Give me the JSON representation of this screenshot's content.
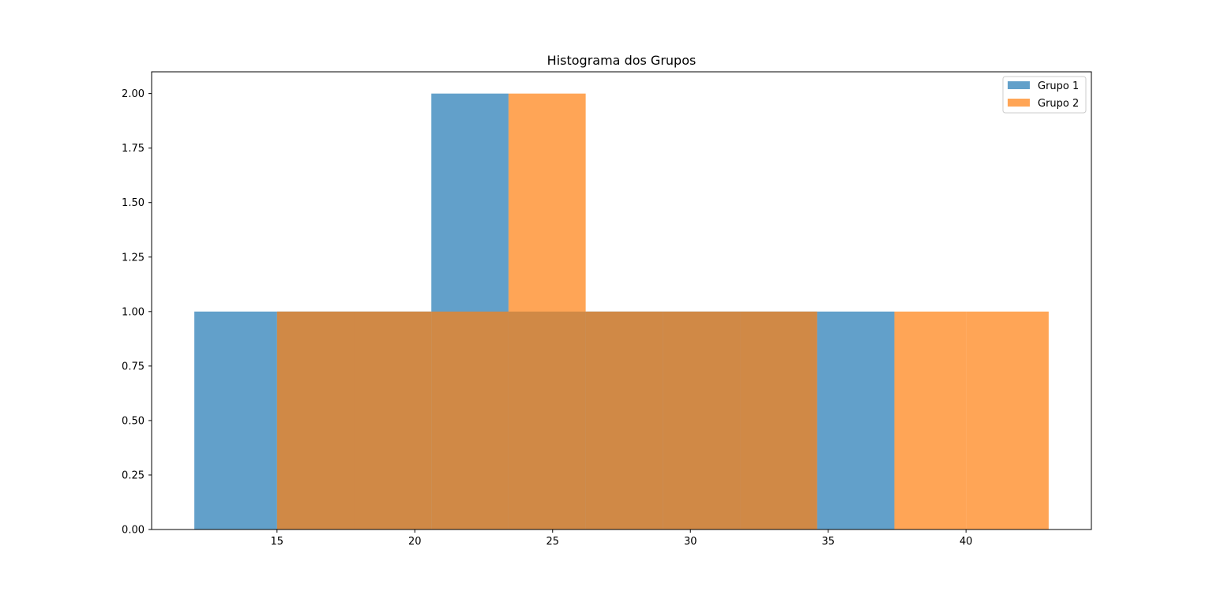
{
  "chart_data": {
    "type": "bar",
    "title": "Histograma dos Grupos",
    "xlabel": "",
    "ylabel": "",
    "xlim": [
      10.45,
      44.55
    ],
    "ylim": [
      0,
      2.1
    ],
    "xticks": [
      15,
      20,
      25,
      30,
      35,
      40
    ],
    "yticks": [
      0,
      0.25,
      0.5,
      0.75,
      1.0,
      1.25,
      1.5,
      1.75,
      2.0
    ],
    "ytick_labels": [
      "0.00",
      "0.25",
      "0.50",
      "0.75",
      "1.00",
      "1.25",
      "1.50",
      "1.75",
      "2.00"
    ],
    "grid": false,
    "legend_position": "top-right",
    "series": [
      {
        "name": "Grupo 1",
        "color": "#1f77b4",
        "opacity": 0.7,
        "bins": [
          {
            "x0": 12.0,
            "x1": 15.0,
            "count": 1
          },
          {
            "x0": 15.0,
            "x1": 17.8,
            "count": 1
          },
          {
            "x0": 17.8,
            "x1": 20.6,
            "count": 1
          },
          {
            "x0": 20.6,
            "x1": 23.4,
            "count": 2
          },
          {
            "x0": 23.4,
            "x1": 26.2,
            "count": 1
          },
          {
            "x0": 26.2,
            "x1": 29.0,
            "count": 1
          },
          {
            "x0": 29.0,
            "x1": 31.8,
            "count": 1
          },
          {
            "x0": 31.8,
            "x1": 34.6,
            "count": 1
          },
          {
            "x0": 34.6,
            "x1": 37.4,
            "count": 1
          }
        ]
      },
      {
        "name": "Grupo 2",
        "color": "#ff7f0e",
        "opacity": 0.7,
        "bins": [
          {
            "x0": 15.0,
            "x1": 17.8,
            "count": 1
          },
          {
            "x0": 17.8,
            "x1": 20.6,
            "count": 1
          },
          {
            "x0": 20.6,
            "x1": 23.4,
            "count": 1
          },
          {
            "x0": 23.4,
            "x1": 26.2,
            "count": 2
          },
          {
            "x0": 26.2,
            "x1": 29.0,
            "count": 1
          },
          {
            "x0": 29.0,
            "x1": 31.8,
            "count": 1
          },
          {
            "x0": 31.8,
            "x1": 34.6,
            "count": 1
          },
          {
            "x0": 37.4,
            "x1": 40.0,
            "count": 1
          },
          {
            "x0": 40.0,
            "x1": 43.0,
            "count": 1
          }
        ]
      }
    ]
  }
}
